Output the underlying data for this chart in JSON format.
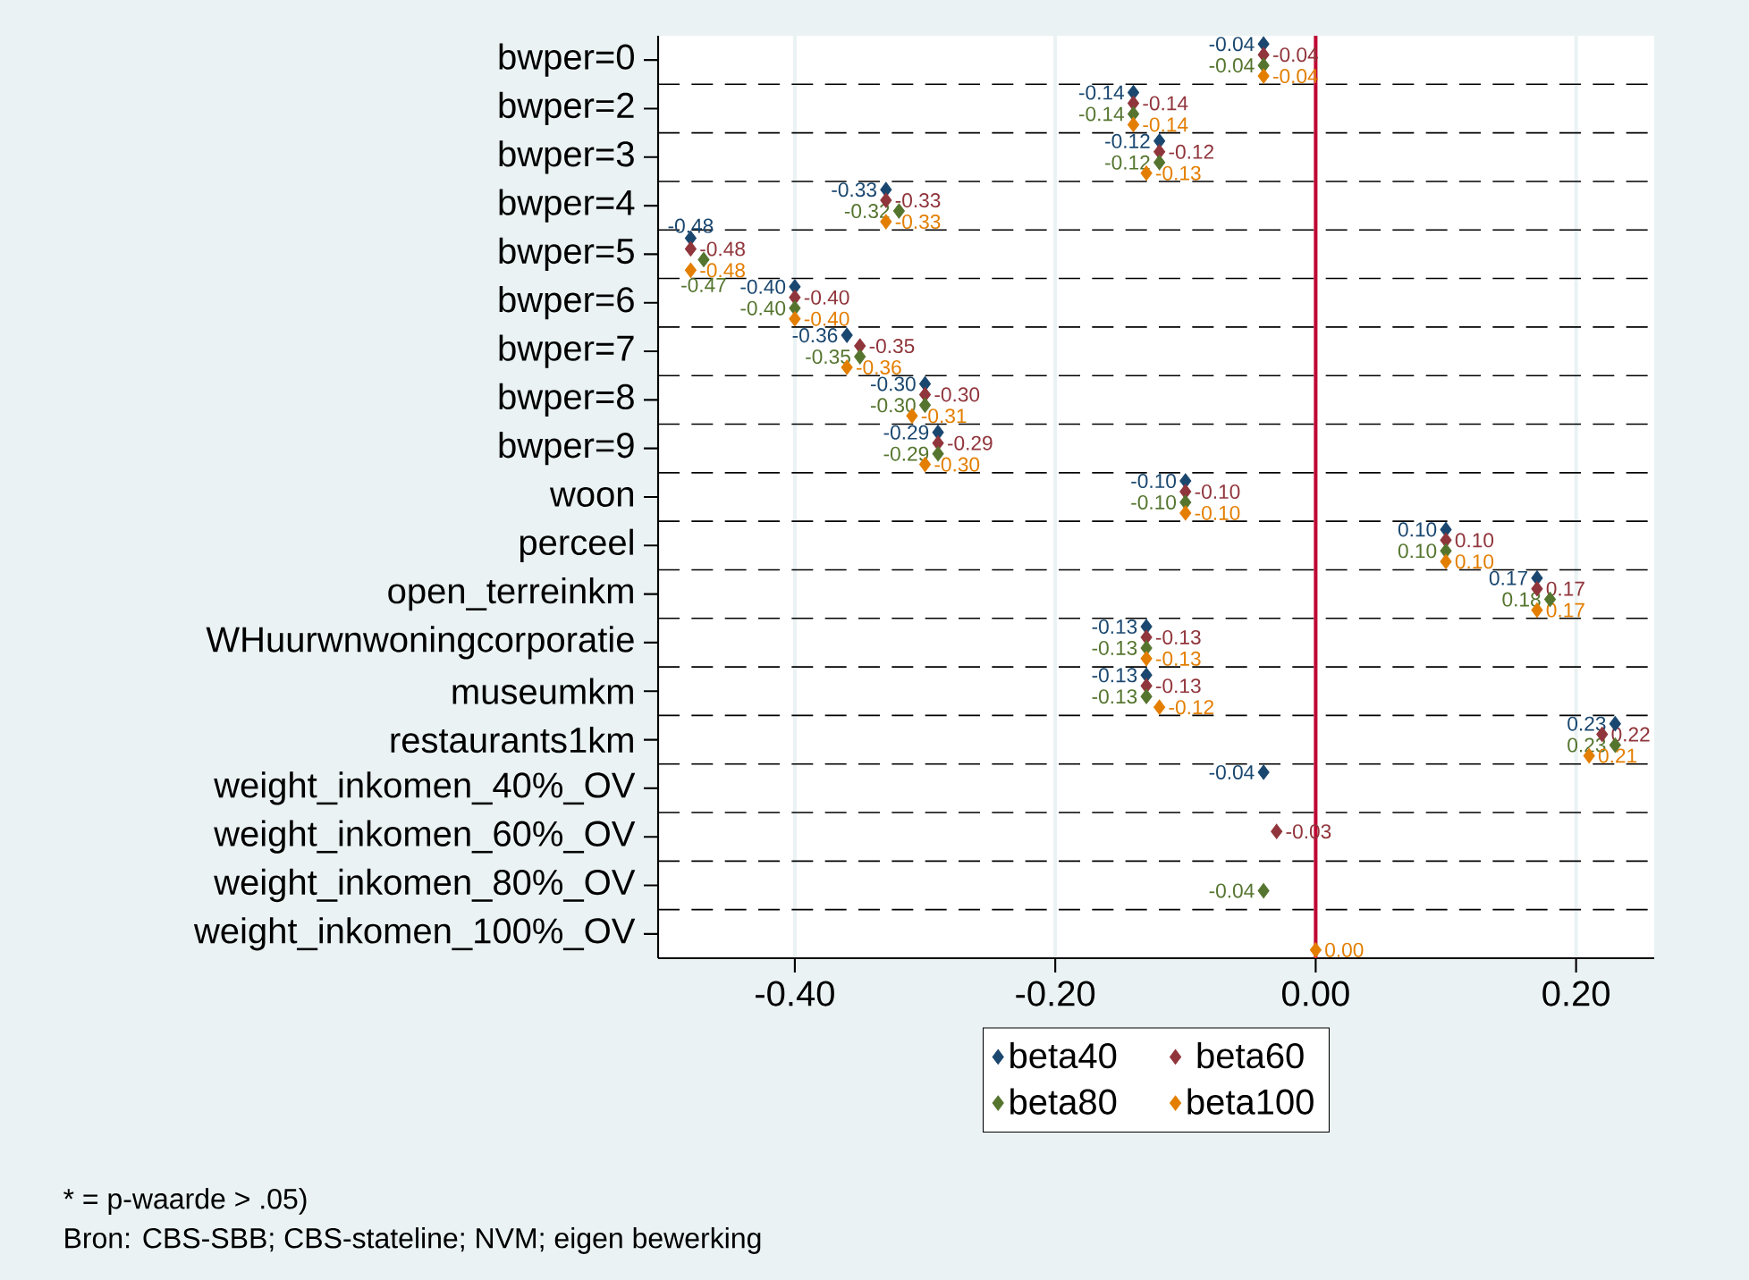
{
  "chart_data": {
    "type": "scatter",
    "orientation": "horizontal",
    "categories": [
      "bwper=0",
      "bwper=2",
      "bwper=3",
      "bwper=4",
      "bwper=5",
      "bwper=6",
      "bwper=7",
      "bwper=8",
      "bwper=9",
      "woon",
      "perceel",
      "open_terreinkm",
      "WHuurwnwoningcorporatie",
      "museumkm",
      "restaurants1km",
      "weight_inkomen_40%_OV",
      "weight_inkomen_60%_OV",
      "weight_inkomen_80%_OV",
      "weight_inkomen_100%_OV"
    ],
    "series": [
      {
        "name": "beta40",
        "color": "#1a476f",
        "values": [
          -0.04,
          -0.14,
          -0.12,
          -0.33,
          -0.48,
          -0.4,
          -0.36,
          -0.3,
          -0.29,
          -0.1,
          0.1,
          0.17,
          -0.13,
          -0.13,
          0.23,
          -0.04,
          null,
          null,
          null
        ],
        "value_labels": [
          "-0.04",
          "-0.14",
          "-0.12",
          "-0.33",
          "-0.48",
          "-0.40",
          "-0.36",
          "-0.30",
          "-0.29",
          "-0.10",
          "0.10",
          "0.17",
          "-0.13",
          "-0.13",
          "0.23",
          "-0.04",
          null,
          null,
          null
        ]
      },
      {
        "name": "beta60",
        "color": "#90353b",
        "values": [
          -0.04,
          -0.14,
          -0.12,
          -0.33,
          -0.48,
          -0.4,
          -0.35,
          -0.3,
          -0.29,
          -0.1,
          0.1,
          0.17,
          -0.13,
          -0.13,
          0.22,
          null,
          -0.03,
          null,
          null
        ],
        "value_labels": [
          "-0.04",
          "-0.14",
          "-0.12",
          "-0.33",
          "-0.48",
          "-0.40",
          "-0.35",
          "-0.30",
          "-0.29",
          "-0.10",
          "0.10",
          "0.17",
          "-0.13",
          "-0.13",
          "0.22",
          null,
          "-0.03",
          null,
          null
        ]
      },
      {
        "name": "beta80",
        "color": "#55752f",
        "values": [
          -0.04,
          -0.14,
          -0.12,
          -0.32,
          -0.47,
          -0.4,
          -0.35,
          -0.3,
          -0.29,
          -0.1,
          0.1,
          0.18,
          -0.13,
          -0.13,
          0.23,
          null,
          null,
          -0.04,
          null
        ],
        "value_labels": [
          "-0.04",
          "-0.14",
          "-0.12",
          "-0.32",
          "-0.47",
          "-0.40",
          "-0.35",
          "-0.30",
          "-0.29",
          "-0.10",
          "0.10",
          "0.18",
          "-0.13",
          "-0.13",
          "0.23",
          null,
          null,
          "-0.04",
          null
        ]
      },
      {
        "name": "beta100",
        "color": "#e37e00",
        "values": [
          -0.04,
          -0.14,
          -0.13,
          -0.33,
          -0.48,
          -0.4,
          -0.36,
          -0.31,
          -0.3,
          -0.1,
          0.1,
          0.17,
          -0.13,
          -0.12,
          0.21,
          null,
          null,
          null,
          0.0
        ],
        "value_labels": [
          "-0.04",
          "-0.14",
          "-0.13",
          "-0.33",
          "-0.48",
          "-0.40",
          "-0.36",
          "-0.31",
          "-0.30",
          "-0.10",
          "0.10",
          "0.17",
          "-0.13",
          "-0.12",
          "0.21",
          null,
          null,
          null,
          "0.00"
        ]
      }
    ],
    "xlim": [
      -0.505,
      0.26
    ],
    "xticks": [
      {
        "value": -0.4,
        "label": "-0.40"
      },
      {
        "value": -0.2,
        "label": "-0.20"
      },
      {
        "value": 0,
        "label": "0.00"
      },
      {
        "value": 0.2,
        "label": "0.20"
      }
    ],
    "ref_lines": [
      {
        "axis": "x",
        "value": 0,
        "color": "#c10534"
      }
    ],
    "grid": true,
    "legend": "bottom",
    "marker": "diamond",
    "annotations": [
      "* = p-waarde > .05)",
      "Bron: CBS-SBB; CBS-stateline; NVM; eigen bewerking"
    ]
  }
}
